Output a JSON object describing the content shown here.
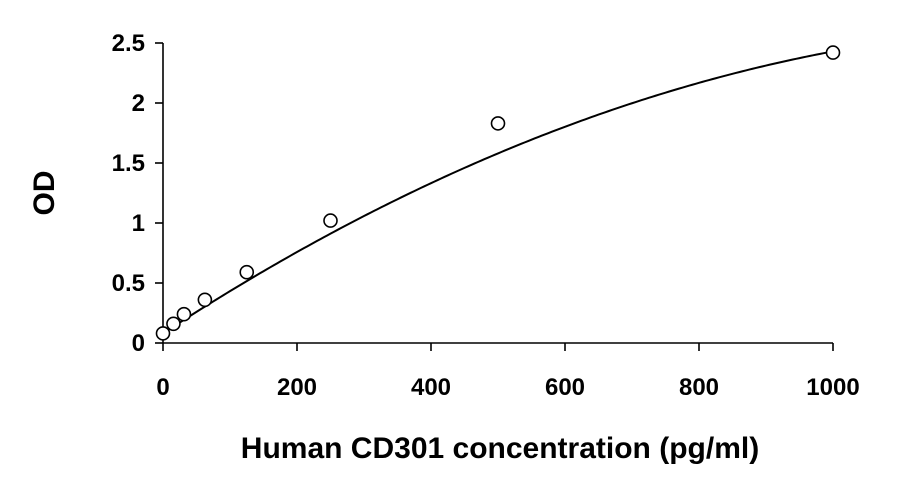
{
  "chart_data": {
    "type": "scatter",
    "title": "",
    "xlabel": "Human CD301 concentration (pg/ml)",
    "ylabel": "OD",
    "xlim": [
      0,
      1000
    ],
    "ylim": [
      0,
      2.5
    ],
    "x_ticks": [
      "0",
      "200",
      "400",
      "600",
      "800",
      "1000"
    ],
    "y_ticks": [
      "0",
      "0.5",
      "1",
      "1.5",
      "2",
      "2.5"
    ],
    "grid": false,
    "legend": "none",
    "series": [
      {
        "marker": "open-circle",
        "x": [
          0,
          15.6,
          31.25,
          62.5,
          125,
          250,
          500,
          1000
        ],
        "y": [
          0.08,
          0.16,
          0.24,
          0.36,
          0.59,
          1.02,
          1.83,
          2.42
        ]
      }
    ],
    "trendline": {
      "kind": "polynomial",
      "coefficients": [
        0.08,
        0.00365,
        -1.3e-06
      ]
    },
    "colors": {
      "marker_fill": "#ffffff",
      "marker_stroke": "#000000",
      "line": "#000000"
    }
  }
}
